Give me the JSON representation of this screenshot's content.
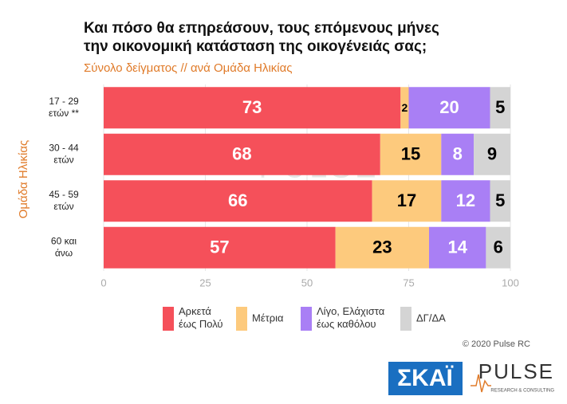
{
  "chart_data": {
    "type": "stacked-barh",
    "title": "Και πόσο θα επηρεάσουν, τους επόμενους μήνες\nτην οικονομική κατάσταση της οικογένειάς σας;",
    "subtitle": "Σύνολο δείγματος // ανά Ομάδα Ηλικίας",
    "y_label": "Ομάδα Ηλικίας",
    "categories": [
      "17 - 29\nετών **",
      "30 - 44\nετών",
      "45 - 59\nετών",
      "60 και\nάνω"
    ],
    "series": [
      {
        "name": "Αρκετά\nέως Πολύ",
        "color": "#f5505a",
        "label_color": "#ffffff",
        "values": [
          73,
          68,
          66,
          57
        ]
      },
      {
        "name": "Μέτρια",
        "color": "#fdca7d",
        "label_color": "#000000",
        "values": [
          2,
          15,
          17,
          23
        ]
      },
      {
        "name": "Λίγο, Ελάχιστα\nέως καθόλου",
        "color": "#a97ff5",
        "label_color": "#ffffff",
        "values": [
          20,
          8,
          12,
          14
        ]
      },
      {
        "name": "ΔΓ/ΔΑ",
        "color": "#d4d4d4",
        "label_color": "#000000",
        "values": [
          5,
          9,
          5,
          6
        ]
      }
    ],
    "xlim": [
      0,
      100
    ],
    "xticks": [
      0,
      25,
      50,
      75,
      100
    ],
    "grid": true,
    "credit": "© 2020 Pulse RC",
    "logos": [
      "ΣΚΑΪ",
      "PULSE",
      "RESEARCH & CONSULTING"
    ]
  }
}
